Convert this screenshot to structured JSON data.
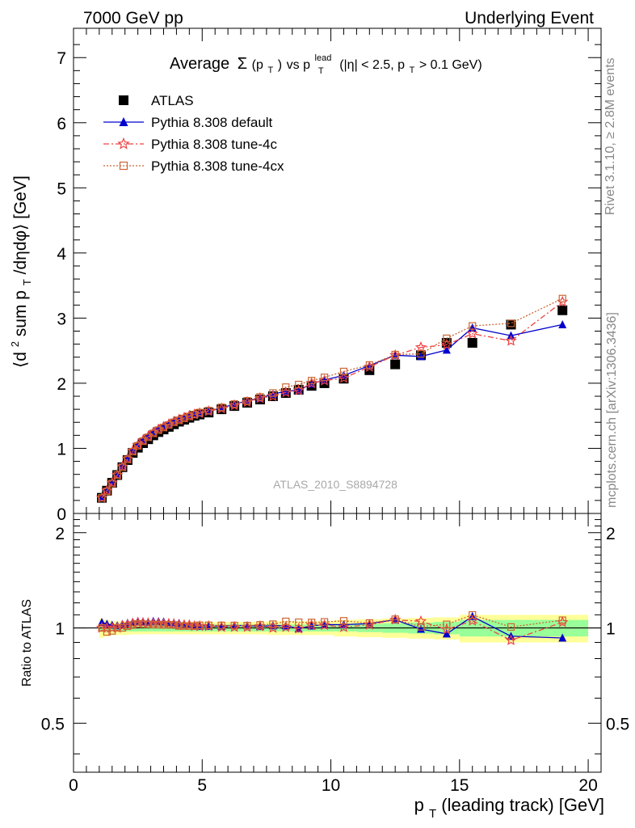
{
  "header": {
    "left": "7000 GeV pp",
    "right": "Underlying Event"
  },
  "side_labels": {
    "rivet": "Rivet 3.1.10, ≥ 2.8M events",
    "mcplots": "mcplots.cern.ch [arXiv:1306.3436]"
  },
  "watermark": "ATLAS_2010_S8894728",
  "chart_data": [
    {
      "type": "scatter",
      "title": "Average Σ(pT) vs pTlead (|η| < 2.5, pT > 0.1 GeV)",
      "title_parts": {
        "average": "Average",
        "sigma": "Σ",
        "paren_open": "(p",
        "pt_sub": "T",
        "paren_close": ")",
        "vs": " vs p",
        "lead_sup": "lead",
        "lead_sub": "T",
        "cut": " (|η| < 2.5, p",
        "cut_sub": "T",
        "cut_end": " > 0.1 GeV)"
      },
      "ylabel_parts": {
        "open": "⟨d",
        "sup2": "2",
        "mid": " sum p",
        "sub": "T",
        "end": "/dηdφ⟩ [GeV]"
      },
      "xlim": [
        0,
        20.5
      ],
      "ylim": [
        0,
        7.45
      ],
      "yticks": [
        "0",
        "1",
        "2",
        "3",
        "4",
        "5",
        "6",
        "7"
      ],
      "x": [
        1.1,
        1.3,
        1.5,
        1.7,
        1.9,
        2.1,
        2.3,
        2.5,
        2.7,
        2.9,
        3.1,
        3.3,
        3.5,
        3.7,
        3.9,
        4.1,
        4.3,
        4.5,
        4.7,
        4.9,
        5.25,
        5.75,
        6.25,
        6.75,
        7.25,
        7.75,
        8.25,
        8.75,
        9.25,
        9.75,
        10.5,
        11.5,
        12.5,
        13.5,
        14.5,
        15.5,
        17.0,
        19.0
      ],
      "series": [
        {
          "name": "ATLAS",
          "color": "#000000",
          "marker": "square",
          "values": [
            0.24,
            0.35,
            0.47,
            0.59,
            0.71,
            0.82,
            0.93,
            1.01,
            1.08,
            1.14,
            1.2,
            1.25,
            1.29,
            1.33,
            1.37,
            1.41,
            1.44,
            1.47,
            1.5,
            1.52,
            1.55,
            1.6,
            1.65,
            1.7,
            1.75,
            1.8,
            1.85,
            1.9,
            1.96,
            2.0,
            2.07,
            2.2,
            2.29,
            2.43,
            2.62,
            2.62,
            2.9,
            3.12
          ]
        },
        {
          "name": "Pythia 8.308 default",
          "color": "#0000cc",
          "marker": "triangle",
          "line": "solid",
          "values": [
            0.25,
            0.36,
            0.48,
            0.6,
            0.73,
            0.85,
            0.97,
            1.06,
            1.13,
            1.19,
            1.26,
            1.31,
            1.35,
            1.38,
            1.42,
            1.46,
            1.48,
            1.51,
            1.52,
            1.54,
            1.57,
            1.62,
            1.68,
            1.73,
            1.77,
            1.83,
            1.88,
            1.89,
            1.99,
            2.05,
            2.12,
            2.27,
            2.43,
            2.41,
            2.51,
            2.85,
            2.73,
            2.9
          ]
        },
        {
          "name": "Pythia 8.308 tune-4c",
          "color": "#ee4444",
          "marker": "star",
          "line": "dashdot",
          "values": [
            0.24,
            0.35,
            0.47,
            0.59,
            0.72,
            0.84,
            0.96,
            1.05,
            1.12,
            1.18,
            1.24,
            1.29,
            1.33,
            1.37,
            1.41,
            1.44,
            1.47,
            1.5,
            1.52,
            1.54,
            1.57,
            1.61,
            1.66,
            1.71,
            1.77,
            1.8,
            1.86,
            1.89,
            2.0,
            2.04,
            2.08,
            2.25,
            2.43,
            2.55,
            2.59,
            2.76,
            2.65,
            3.25
          ]
        },
        {
          "name": "Pythia 8.308 tune-4cx",
          "color": "#cc6633",
          "marker": "open-square",
          "line": "dotted",
          "values": [
            0.24,
            0.34,
            0.46,
            0.59,
            0.71,
            0.83,
            0.95,
            1.04,
            1.11,
            1.17,
            1.23,
            1.28,
            1.32,
            1.36,
            1.4,
            1.43,
            1.46,
            1.49,
            1.52,
            1.55,
            1.58,
            1.63,
            1.68,
            1.73,
            1.79,
            1.85,
            1.94,
            1.98,
            2.04,
            2.09,
            2.18,
            2.28,
            2.44,
            2.45,
            2.69,
            2.88,
            2.92,
            3.3
          ]
        }
      ],
      "legend_position": "top-left"
    },
    {
      "type": "scatter",
      "ylabel": "Ratio to ATLAS",
      "xlabel_parts": {
        "p": "p",
        "sub": "T",
        "rest": " (leading track) [GeV]"
      },
      "xlim": [
        0,
        20.5
      ],
      "ylim": [
        0.35,
        2.3
      ],
      "yticks": [
        "0.5",
        "1",
        "2"
      ],
      "xticks": [
        "0",
        "5",
        "10",
        "15",
        "20"
      ],
      "reference": 1,
      "bands": {
        "stat_color": "#99ff99",
        "total_color": "#ffff99",
        "stat_halfwidth": [
          0.025,
          0.025,
          0.025,
          0.025,
          0.025,
          0.025,
          0.025,
          0.025,
          0.025,
          0.025,
          0.025,
          0.025,
          0.025,
          0.025,
          0.025,
          0.025,
          0.025,
          0.025,
          0.025,
          0.025,
          0.025,
          0.025,
          0.025,
          0.025,
          0.025,
          0.025,
          0.025,
          0.025,
          0.025,
          0.025,
          0.025,
          0.03,
          0.035,
          0.04,
          0.045,
          0.06,
          0.06,
          0.06
        ],
        "total_halfwidth": [
          0.07,
          0.06,
          0.05,
          0.05,
          0.05,
          0.05,
          0.045,
          0.045,
          0.045,
          0.045,
          0.045,
          0.045,
          0.045,
          0.045,
          0.045,
          0.045,
          0.045,
          0.045,
          0.045,
          0.045,
          0.045,
          0.045,
          0.045,
          0.045,
          0.045,
          0.05,
          0.05,
          0.05,
          0.05,
          0.05,
          0.06,
          0.065,
          0.07,
          0.075,
          0.08,
          0.1,
          0.1,
          0.1
        ]
      }
    }
  ]
}
